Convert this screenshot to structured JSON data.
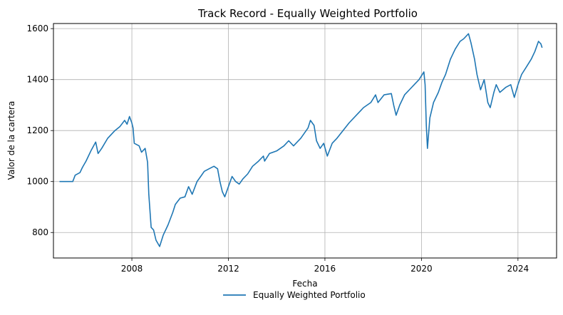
{
  "chart_data": {
    "type": "line",
    "title": "Track Record - Equally Weighted Portfolio",
    "xlabel": "Fecha",
    "ylabel": "Valor de la cartera",
    "xlim": [
      2004.75,
      2025.6
    ],
    "ylim": [
      700,
      1620
    ],
    "x_ticks": [
      2008,
      2012,
      2016,
      2020,
      2024
    ],
    "x_tick_labels": [
      "2008",
      "2012",
      "2016",
      "2020",
      "2024"
    ],
    "y_ticks": [
      800,
      1000,
      1200,
      1400,
      1600
    ],
    "y_tick_labels": [
      "800",
      "1000",
      "1200",
      "1400",
      "1600"
    ],
    "grid": true,
    "legend_position": "bottom-center",
    "series": [
      {
        "name": "Equally Weighted Portfolio",
        "color": "#1f77b4",
        "points": [
          [
            2005.0,
            1000
          ],
          [
            2005.55,
            1000
          ],
          [
            2005.65,
            1025
          ],
          [
            2005.85,
            1035
          ],
          [
            2005.95,
            1055
          ],
          [
            2006.1,
            1080
          ],
          [
            2006.3,
            1120
          ],
          [
            2006.5,
            1155
          ],
          [
            2006.6,
            1110
          ],
          [
            2006.75,
            1130
          ],
          [
            2007.0,
            1170
          ],
          [
            2007.3,
            1200
          ],
          [
            2007.5,
            1215
          ],
          [
            2007.7,
            1240
          ],
          [
            2007.8,
            1225
          ],
          [
            2007.9,
            1255
          ],
          [
            2008.0,
            1230
          ],
          [
            2008.05,
            1210
          ],
          [
            2008.1,
            1150
          ],
          [
            2008.3,
            1140
          ],
          [
            2008.4,
            1115
          ],
          [
            2008.55,
            1130
          ],
          [
            2008.65,
            1075
          ],
          [
            2008.7,
            950
          ],
          [
            2008.8,
            820
          ],
          [
            2008.9,
            810
          ],
          [
            2009.0,
            770
          ],
          [
            2009.15,
            745
          ],
          [
            2009.3,
            790
          ],
          [
            2009.5,
            830
          ],
          [
            2009.7,
            880
          ],
          [
            2009.8,
            910
          ],
          [
            2010.0,
            935
          ],
          [
            2010.2,
            940
          ],
          [
            2010.35,
            980
          ],
          [
            2010.5,
            950
          ],
          [
            2010.7,
            1000
          ],
          [
            2010.85,
            1020
          ],
          [
            2011.0,
            1040
          ],
          [
            2011.2,
            1050
          ],
          [
            2011.4,
            1060
          ],
          [
            2011.55,
            1050
          ],
          [
            2011.65,
            1000
          ],
          [
            2011.75,
            960
          ],
          [
            2011.85,
            940
          ],
          [
            2012.0,
            980
          ],
          [
            2012.15,
            1020
          ],
          [
            2012.3,
            1000
          ],
          [
            2012.45,
            990
          ],
          [
            2012.6,
            1010
          ],
          [
            2012.8,
            1030
          ],
          [
            2013.0,
            1060
          ],
          [
            2013.25,
            1080
          ],
          [
            2013.45,
            1100
          ],
          [
            2013.5,
            1080
          ],
          [
            2013.7,
            1110
          ],
          [
            2014.0,
            1120
          ],
          [
            2014.3,
            1140
          ],
          [
            2014.5,
            1160
          ],
          [
            2014.7,
            1140
          ],
          [
            2015.0,
            1170
          ],
          [
            2015.3,
            1210
          ],
          [
            2015.4,
            1240
          ],
          [
            2015.55,
            1220
          ],
          [
            2015.65,
            1160
          ],
          [
            2015.8,
            1130
          ],
          [
            2015.95,
            1150
          ],
          [
            2016.1,
            1100
          ],
          [
            2016.3,
            1150
          ],
          [
            2016.5,
            1170
          ],
          [
            2016.75,
            1200
          ],
          [
            2017.0,
            1230
          ],
          [
            2017.3,
            1260
          ],
          [
            2017.6,
            1290
          ],
          [
            2017.9,
            1310
          ],
          [
            2018.1,
            1340
          ],
          [
            2018.2,
            1310
          ],
          [
            2018.45,
            1340
          ],
          [
            2018.75,
            1345
          ],
          [
            2018.85,
            1300
          ],
          [
            2018.95,
            1260
          ],
          [
            2019.1,
            1300
          ],
          [
            2019.3,
            1340
          ],
          [
            2019.5,
            1360
          ],
          [
            2019.7,
            1380
          ],
          [
            2019.9,
            1400
          ],
          [
            2020.1,
            1430
          ],
          [
            2020.15,
            1380
          ],
          [
            2020.2,
            1220
          ],
          [
            2020.25,
            1130
          ],
          [
            2020.35,
            1250
          ],
          [
            2020.5,
            1310
          ],
          [
            2020.7,
            1350
          ],
          [
            2020.85,
            1390
          ],
          [
            2021.0,
            1420
          ],
          [
            2021.2,
            1480
          ],
          [
            2021.4,
            1520
          ],
          [
            2021.6,
            1550
          ],
          [
            2021.75,
            1560
          ],
          [
            2021.95,
            1580
          ],
          [
            2022.05,
            1545
          ],
          [
            2022.2,
            1480
          ],
          [
            2022.3,
            1420
          ],
          [
            2022.45,
            1360
          ],
          [
            2022.6,
            1400
          ],
          [
            2022.75,
            1310
          ],
          [
            2022.85,
            1290
          ],
          [
            2023.0,
            1350
          ],
          [
            2023.1,
            1380
          ],
          [
            2023.25,
            1350
          ],
          [
            2023.5,
            1370
          ],
          [
            2023.7,
            1380
          ],
          [
            2023.85,
            1330
          ],
          [
            2024.0,
            1380
          ],
          [
            2024.15,
            1420
          ],
          [
            2024.35,
            1450
          ],
          [
            2024.55,
            1480
          ],
          [
            2024.7,
            1510
          ],
          [
            2024.85,
            1550
          ],
          [
            2024.95,
            1540
          ],
          [
            2025.0,
            1525
          ]
        ]
      }
    ]
  }
}
